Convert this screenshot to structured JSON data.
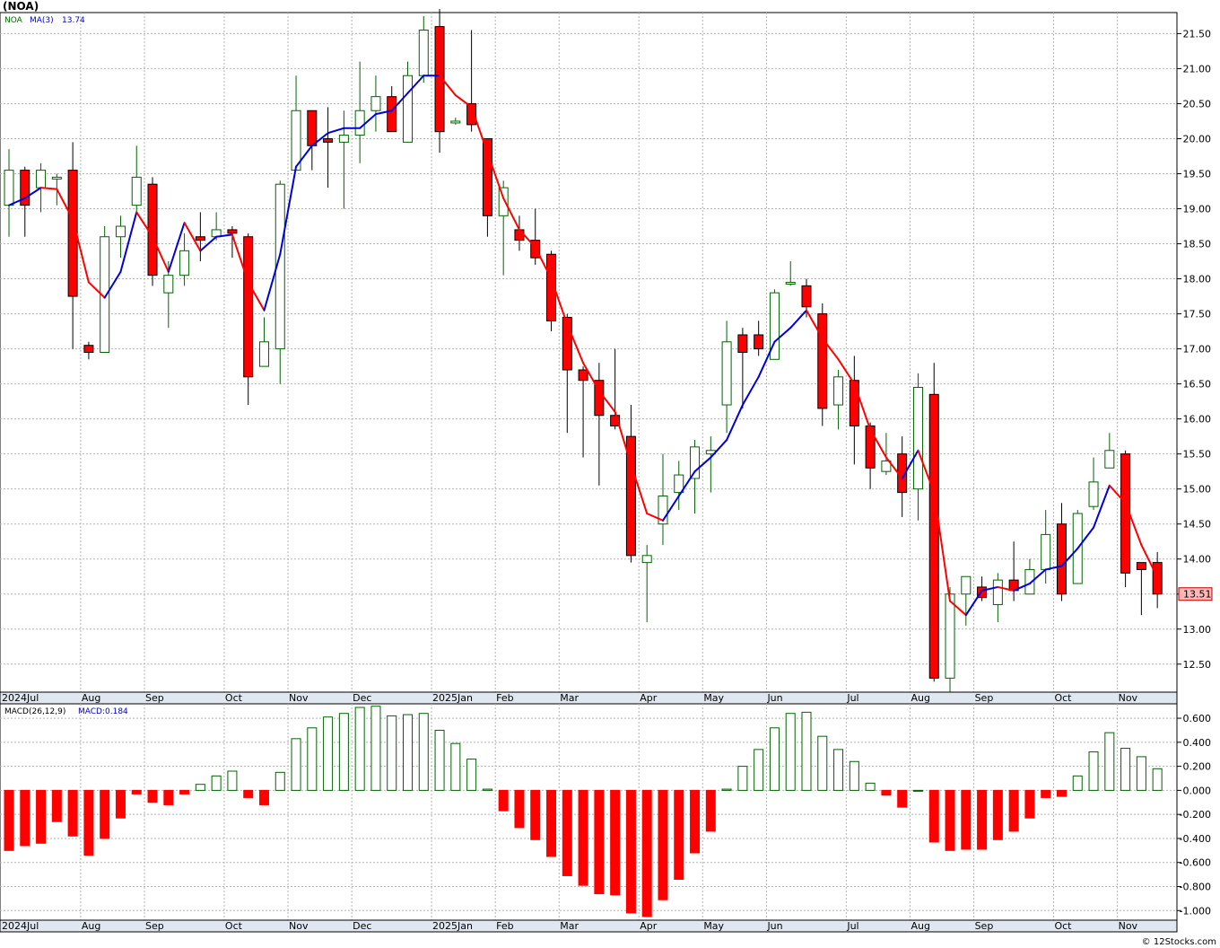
{
  "title": "(NOA)",
  "legend": {
    "symbol": "NOA",
    "ma_label": "MA(3)",
    "ma_value": "13.74"
  },
  "macd_legend": {
    "label": "MACD(26,12,9)",
    "value_label": "MACD:0.184"
  },
  "last_price_label": "13.51",
  "watermark": "© 12Stocks.com",
  "colors": {
    "up": "#006400",
    "down": "#ff0000",
    "ma_up": "#0000dd",
    "ma_down": "#ff0000",
    "grid": "#b4b4b4",
    "band": "#e0e7f0",
    "label_box": "#ffb6b6"
  },
  "month_labels": [
    {
      "label": "2024Jul",
      "week": 0
    },
    {
      "label": "Aug",
      "week": 5
    },
    {
      "label": "Sep",
      "week": 9
    },
    {
      "label": "Oct",
      "week": 14
    },
    {
      "label": "Nov",
      "week": 18
    },
    {
      "label": "Dec",
      "week": 22
    },
    {
      "label": "2025Jan",
      "week": 27
    },
    {
      "label": "Feb",
      "week": 31
    },
    {
      "label": "Mar",
      "week": 35
    },
    {
      "label": "Apr",
      "week": 40
    },
    {
      "label": "May",
      "week": 44
    },
    {
      "label": "Jun",
      "week": 48
    },
    {
      "label": "Jul",
      "week": 53
    },
    {
      "label": "Aug",
      "week": 57
    },
    {
      "label": "Sep",
      "week": 61
    },
    {
      "label": "Oct",
      "week": 66
    },
    {
      "label": "Nov",
      "week": 70
    }
  ],
  "chart_data": [
    {
      "type": "candlestick",
      "symbol": "NOA",
      "interval": "weekly",
      "ylim": [
        12.1,
        21.8
      ],
      "yticks": [
        "12.50",
        "13.00",
        "13.50",
        "14.00",
        "14.50",
        "15.00",
        "15.50",
        "16.00",
        "16.50",
        "17.00",
        "17.50",
        "18.00",
        "18.50",
        "19.00",
        "19.50",
        "20.00",
        "20.50",
        "21.00",
        "21.50"
      ],
      "ma_period": 3,
      "candles": [
        [
          19.05,
          19.55,
          18.6,
          19.85
        ],
        [
          19.55,
          19.05,
          18.6,
          19.6
        ],
        [
          19.3,
          19.55,
          18.95,
          19.65
        ],
        [
          19.45,
          19.45,
          19.05,
          19.5
        ],
        [
          19.55,
          17.75,
          17.0,
          19.95
        ],
        [
          17.05,
          16.95,
          16.85,
          17.1
        ],
        [
          16.95,
          18.6,
          16.95,
          18.75
        ],
        [
          18.6,
          18.75,
          18.3,
          18.9
        ],
        [
          19.05,
          19.45,
          18.95,
          19.9
        ],
        [
          19.35,
          18.05,
          17.9,
          19.45
        ],
        [
          17.8,
          18.05,
          17.3,
          18.25
        ],
        [
          18.05,
          18.4,
          17.9,
          18.65
        ],
        [
          18.6,
          18.55,
          18.25,
          18.95
        ],
        [
          18.6,
          18.7,
          18.55,
          18.95
        ],
        [
          18.7,
          18.65,
          18.3,
          18.75
        ],
        [
          18.6,
          16.6,
          16.2,
          18.65
        ],
        [
          16.75,
          17.1,
          16.75,
          17.45
        ],
        [
          17.0,
          19.35,
          16.5,
          19.4
        ],
        [
          19.55,
          20.4,
          19.55,
          20.9
        ],
        [
          20.4,
          19.9,
          19.55,
          20.4
        ],
        [
          20.0,
          19.95,
          19.3,
          20.45
        ],
        [
          19.95,
          20.05,
          19.0,
          20.4
        ],
        [
          20.05,
          20.4,
          19.65,
          21.1
        ],
        [
          20.4,
          20.6,
          20.1,
          20.9
        ],
        [
          20.6,
          20.1,
          20.1,
          20.75
        ],
        [
          19.95,
          20.9,
          19.95,
          21.1
        ],
        [
          20.9,
          21.55,
          20.8,
          21.75
        ],
        [
          21.6,
          20.1,
          19.8,
          21.85
        ],
        [
          20.25,
          20.25,
          20.2,
          20.3
        ],
        [
          20.5,
          20.2,
          20.1,
          21.55
        ],
        [
          20.0,
          18.9,
          18.6,
          20.0
        ],
        [
          18.9,
          19.3,
          18.05,
          19.4
        ],
        [
          18.7,
          18.55,
          18.4,
          18.9
        ],
        [
          18.55,
          18.3,
          18.2,
          19.0
        ],
        [
          18.35,
          17.4,
          17.25,
          18.4
        ],
        [
          17.45,
          16.7,
          15.8,
          17.5
        ],
        [
          16.7,
          16.55,
          15.45,
          16.75
        ],
        [
          16.55,
          16.05,
          15.05,
          16.8
        ],
        [
          16.05,
          15.9,
          15.85,
          17.0
        ],
        [
          15.75,
          14.05,
          13.95,
          16.2
        ],
        [
          13.95,
          14.05,
          13.1,
          14.2
        ],
        [
          14.5,
          14.9,
          14.2,
          15.5
        ],
        [
          14.95,
          15.2,
          14.7,
          15.4
        ],
        [
          15.15,
          15.6,
          14.65,
          15.7
        ],
        [
          15.5,
          15.55,
          14.95,
          15.75
        ],
        [
          16.2,
          17.1,
          15.8,
          17.4
        ],
        [
          17.2,
          16.95,
          16.15,
          17.3
        ],
        [
          17.2,
          17.0,
          16.9,
          17.4
        ],
        [
          16.85,
          17.8,
          16.85,
          17.85
        ],
        [
          17.95,
          17.95,
          17.9,
          18.25
        ],
        [
          17.9,
          17.6,
          17.45,
          18.0
        ],
        [
          17.5,
          16.15,
          15.9,
          17.65
        ],
        [
          16.2,
          16.6,
          15.85,
          16.7
        ],
        [
          16.55,
          15.9,
          15.35,
          16.9
        ],
        [
          15.9,
          15.3,
          15.0,
          15.95
        ],
        [
          15.25,
          15.4,
          15.2,
          15.8
        ],
        [
          15.5,
          14.95,
          14.6,
          15.75
        ],
        [
          15.0,
          16.45,
          14.55,
          16.65
        ],
        [
          16.35,
          12.3,
          12.25,
          16.8
        ],
        [
          12.3,
          13.5,
          12.1,
          13.6
        ],
        [
          13.5,
          13.75,
          13.05,
          13.75
        ],
        [
          13.6,
          13.45,
          13.4,
          13.75
        ],
        [
          13.35,
          13.7,
          13.1,
          13.8
        ],
        [
          13.7,
          13.55,
          13.4,
          14.25
        ],
        [
          13.5,
          13.85,
          13.5,
          14.0
        ],
        [
          13.85,
          14.35,
          13.65,
          14.7
        ],
        [
          14.5,
          13.5,
          13.4,
          14.8
        ],
        [
          13.65,
          14.65,
          13.65,
          14.7
        ],
        [
          14.75,
          15.1,
          14.7,
          15.45
        ],
        [
          15.3,
          15.55,
          15.3,
          15.8
        ],
        [
          15.5,
          13.8,
          13.6,
          15.55
        ],
        [
          13.95,
          13.85,
          13.2,
          13.9
        ],
        [
          13.95,
          13.5,
          13.3,
          14.1
        ]
      ],
      "ma_values": [
        19.05,
        19.15,
        19.3,
        19.28,
        18.85,
        17.95,
        17.73,
        18.1,
        18.95,
        18.6,
        18.1,
        18.8,
        18.4,
        18.6,
        18.63,
        17.95,
        17.55,
        18.35,
        19.6,
        19.9,
        20.08,
        20.15,
        20.15,
        20.35,
        20.4,
        20.65,
        20.9,
        20.9,
        20.62,
        20.45,
        19.8,
        19.15,
        18.7,
        18.45,
        18.0,
        17.35,
        16.8,
        16.4,
        16.1,
        15.35,
        14.65,
        14.55,
        14.9,
        15.25,
        15.45,
        15.7,
        16.2,
        16.6,
        17.1,
        17.3,
        17.55,
        17.15,
        16.85,
        16.5,
        15.85,
        15.45,
        15.15,
        15.55,
        14.95,
        13.4,
        13.2,
        13.55,
        13.6,
        13.55,
        13.65,
        13.85,
        13.9,
        14.15,
        14.45,
        15.05,
        14.8,
        14.2,
        13.74
      ],
      "macd": {
        "label": "MACD(26,12,9)",
        "current": 0.184,
        "ylim": [
          -1.08,
          0.72
        ],
        "yticks": [
          "0.600",
          "0.400",
          "0.200",
          "0.000",
          "-0.200",
          "-0.400",
          "-0.600",
          "-0.800",
          "-1.000"
        ],
        "values": [
          -0.5,
          -0.46,
          -0.44,
          -0.26,
          -0.38,
          -0.54,
          -0.4,
          -0.23,
          -0.03,
          -0.1,
          -0.12,
          -0.03,
          0.05,
          0.12,
          0.16,
          -0.06,
          -0.12,
          0.15,
          0.43,
          0.52,
          0.61,
          0.64,
          0.69,
          0.7,
          0.62,
          0.63,
          0.64,
          0.5,
          0.39,
          0.26,
          0.01,
          -0.17,
          -0.31,
          -0.41,
          -0.55,
          -0.71,
          -0.79,
          -0.86,
          -0.87,
          -1.02,
          -1.05,
          -0.91,
          -0.74,
          -0.52,
          -0.34,
          0.01,
          0.2,
          0.34,
          0.52,
          0.64,
          0.65,
          0.45,
          0.34,
          0.24,
          0.06,
          -0.04,
          -0.14,
          0.0,
          -0.43,
          -0.5,
          -0.49,
          -0.49,
          -0.41,
          -0.34,
          -0.23,
          -0.06,
          -0.05,
          0.12,
          0.32,
          0.48,
          0.35,
          0.28,
          0.18
        ]
      }
    }
  ]
}
